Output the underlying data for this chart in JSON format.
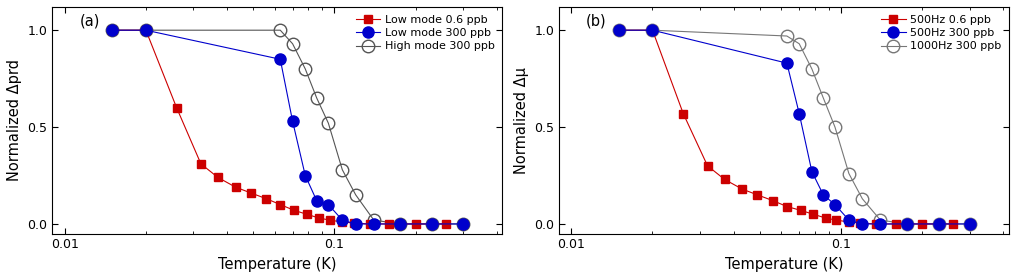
{
  "panel_a": {
    "ylabel": "Normalized Δprd",
    "xlabel": "Temperature (K)",
    "label": "(a)",
    "series": [
      {
        "label": "Low mode 0.6 ppb",
        "color": "#cc0000",
        "marker": "s",
        "fillstyle": "full",
        "markersize": 6,
        "linewidth": 0.8,
        "x": [
          0.015,
          0.02,
          0.026,
          0.032,
          0.037,
          0.043,
          0.049,
          0.056,
          0.063,
          0.071,
          0.079,
          0.088,
          0.096,
          0.107,
          0.118,
          0.135,
          0.16,
          0.2,
          0.26
        ],
        "y": [
          1.0,
          1.0,
          0.6,
          0.31,
          0.24,
          0.19,
          0.16,
          0.13,
          0.1,
          0.07,
          0.05,
          0.03,
          0.02,
          0.01,
          0.005,
          0.0,
          0.0,
          0.0,
          0.0
        ]
      },
      {
        "label": "Low mode 300 ppb",
        "color": "#0000cc",
        "marker": "o",
        "fillstyle": "full",
        "markersize": 8,
        "linewidth": 0.8,
        "x": [
          0.015,
          0.02,
          0.063,
          0.07,
          0.078,
          0.086,
          0.095,
          0.107,
          0.12,
          0.14,
          0.175,
          0.23,
          0.3
        ],
        "y": [
          1.0,
          1.0,
          0.85,
          0.53,
          0.25,
          0.12,
          0.1,
          0.02,
          0.0,
          0.0,
          0.0,
          0.0,
          0.0
        ]
      },
      {
        "label": "High mode 300 ppb",
        "color": "#555555",
        "marker": "o",
        "fillstyle": "none",
        "markersize": 9,
        "linewidth": 0.8,
        "x": [
          0.015,
          0.02,
          0.063,
          0.07,
          0.078,
          0.086,
          0.095,
          0.107,
          0.12,
          0.14,
          0.175,
          0.23,
          0.3
        ],
        "y": [
          1.0,
          1.0,
          1.0,
          0.93,
          0.8,
          0.65,
          0.52,
          0.28,
          0.15,
          0.02,
          0.0,
          0.0,
          0.0
        ]
      }
    ]
  },
  "panel_b": {
    "ylabel": "Normalized Δμ",
    "xlabel": "Temperature (K)",
    "label": "(b)",
    "series": [
      {
        "label": "500Hz 0.6 ppb",
        "color": "#cc0000",
        "marker": "s",
        "fillstyle": "full",
        "markersize": 6,
        "linewidth": 0.8,
        "x": [
          0.015,
          0.02,
          0.026,
          0.032,
          0.037,
          0.043,
          0.049,
          0.056,
          0.063,
          0.071,
          0.079,
          0.088,
          0.096,
          0.107,
          0.118,
          0.135,
          0.16,
          0.2,
          0.26
        ],
        "y": [
          1.0,
          1.0,
          0.57,
          0.3,
          0.23,
          0.18,
          0.15,
          0.12,
          0.09,
          0.07,
          0.05,
          0.03,
          0.02,
          0.01,
          0.005,
          0.0,
          0.0,
          0.0,
          0.0
        ]
      },
      {
        "label": "500Hz 300 ppb",
        "color": "#0000cc",
        "marker": "o",
        "fillstyle": "full",
        "markersize": 8,
        "linewidth": 0.8,
        "x": [
          0.015,
          0.02,
          0.063,
          0.07,
          0.078,
          0.086,
          0.095,
          0.107,
          0.12,
          0.14,
          0.175,
          0.23,
          0.3
        ],
        "y": [
          1.0,
          1.0,
          0.83,
          0.57,
          0.27,
          0.15,
          0.1,
          0.02,
          0.0,
          0.0,
          0.0,
          0.0,
          0.0
        ]
      },
      {
        "label": "1000Hz 300 ppb",
        "color": "#777777",
        "marker": "o",
        "fillstyle": "none",
        "markersize": 9,
        "linewidth": 0.8,
        "x": [
          0.015,
          0.02,
          0.063,
          0.07,
          0.078,
          0.086,
          0.095,
          0.107,
          0.12,
          0.14,
          0.175,
          0.23,
          0.3
        ],
        "y": [
          1.0,
          1.0,
          0.97,
          0.93,
          0.8,
          0.65,
          0.5,
          0.26,
          0.13,
          0.02,
          0.0,
          0.0,
          0.0
        ]
      }
    ]
  },
  "xlim": [
    0.009,
    0.42
  ],
  "ylim": [
    -0.05,
    1.12
  ],
  "xticklabels": [
    "0.01",
    "0.1"
  ],
  "background_color": "#ffffff",
  "legend_fontsize": 8,
  "axis_fontsize": 10.5,
  "tick_fontsize": 9
}
